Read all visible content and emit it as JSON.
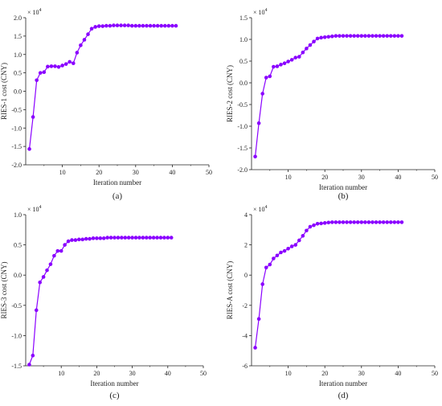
{
  "line_color": "#8a00ff",
  "chart_data": [
    {
      "type": "line",
      "panel_label": "(a)",
      "xlabel": "Iteration number",
      "ylabel": "RIES-1 cost (CNY)",
      "y_exponent": "× 10",
      "y_exponent_power": "4",
      "xlim": [
        0,
        50
      ],
      "ylim": [
        -2.0,
        2.0
      ],
      "xticks": [
        10,
        20,
        30,
        40,
        50
      ],
      "xtick_labels": [
        "10",
        "20",
        "30",
        "40",
        "50"
      ],
      "yticks": [
        -2.0,
        -1.5,
        -1.0,
        -0.5,
        0.0,
        0.5,
        1.0,
        1.5,
        2.0
      ],
      "ytick_labels": [
        "-2.0",
        "-1.5",
        "-1.0",
        "-0.5",
        "0.0",
        "0.5",
        "1.0",
        "1.5",
        "2.0"
      ],
      "grid": false,
      "series": [
        {
          "x": [
            1,
            2,
            3,
            4,
            5,
            6,
            7,
            8,
            9,
            10,
            11,
            12,
            13,
            14,
            15,
            16,
            17,
            18,
            19,
            20,
            21,
            22,
            23,
            24,
            25,
            26,
            27,
            28,
            29,
            30,
            31,
            32,
            33,
            34,
            35,
            36,
            37,
            38,
            39,
            40,
            41
          ],
          "y": [
            -1.57,
            -0.7,
            0.3,
            0.5,
            0.52,
            0.67,
            0.68,
            0.68,
            0.66,
            0.7,
            0.74,
            0.8,
            0.76,
            1.05,
            1.25,
            1.4,
            1.55,
            1.7,
            1.75,
            1.77,
            1.77,
            1.78,
            1.78,
            1.79,
            1.79,
            1.79,
            1.79,
            1.79,
            1.78,
            1.78,
            1.78,
            1.78,
            1.78,
            1.78,
            1.78,
            1.78,
            1.78,
            1.78,
            1.78,
            1.78,
            1.78
          ]
        }
      ]
    },
    {
      "type": "line",
      "panel_label": "(b)",
      "xlabel": "Iteration number",
      "ylabel": "RIES-2 cost (CNY)",
      "y_exponent": "× 10",
      "y_exponent_power": "4",
      "xlim": [
        0,
        50
      ],
      "ylim": [
        -2.0,
        1.5
      ],
      "xticks": [
        10,
        20,
        30,
        40,
        50
      ],
      "xtick_labels": [
        "10",
        "20",
        "30",
        "40",
        "50"
      ],
      "yticks": [
        -2.0,
        -1.5,
        -1.0,
        -0.5,
        0.0,
        0.5,
        1.0,
        1.5
      ],
      "ytick_labels": [
        "-2.0",
        "-1.5",
        "-1.0",
        "-0.5",
        "0.0",
        "0.5",
        "1.0",
        "1.5"
      ],
      "grid": false,
      "series": [
        {
          "x": [
            1,
            2,
            3,
            4,
            5,
            6,
            7,
            8,
            9,
            10,
            11,
            12,
            13,
            14,
            15,
            16,
            17,
            18,
            19,
            20,
            21,
            22,
            23,
            24,
            25,
            26,
            27,
            28,
            29,
            30,
            31,
            32,
            33,
            34,
            35,
            36,
            37,
            38,
            39,
            40,
            41
          ],
          "y": [
            -1.7,
            -0.93,
            -0.25,
            0.12,
            0.15,
            0.37,
            0.38,
            0.42,
            0.45,
            0.49,
            0.53,
            0.58,
            0.6,
            0.7,
            0.79,
            0.87,
            0.95,
            1.02,
            1.04,
            1.05,
            1.06,
            1.07,
            1.08,
            1.08,
            1.08,
            1.08,
            1.08,
            1.08,
            1.08,
            1.08,
            1.08,
            1.08,
            1.08,
            1.08,
            1.08,
            1.08,
            1.08,
            1.08,
            1.08,
            1.08,
            1.08
          ]
        }
      ]
    },
    {
      "type": "line",
      "panel_label": "(c)",
      "xlabel": "Iteration number",
      "ylabel": "RIES-3 cost (CNY)",
      "y_exponent": "× 10",
      "y_exponent_power": "4",
      "xlim": [
        0,
        50
      ],
      "ylim": [
        -1.5,
        1.0
      ],
      "xticks": [
        10,
        20,
        30,
        40,
        50
      ],
      "xtick_labels": [
        "10",
        "20",
        "30",
        "40",
        "50"
      ],
      "yticks": [
        -1.5,
        -1.0,
        -0.5,
        0.0,
        0.5,
        1.0
      ],
      "ytick_labels": [
        "-1.5",
        "-1.0",
        "-0.5",
        "0.0",
        "0.5",
        "1.0"
      ],
      "grid": false,
      "series": [
        {
          "x": [
            1,
            2,
            3,
            4,
            5,
            6,
            7,
            8,
            9,
            10,
            11,
            12,
            13,
            14,
            15,
            16,
            17,
            18,
            19,
            20,
            21,
            22,
            23,
            24,
            25,
            26,
            27,
            28,
            29,
            30,
            31,
            32,
            33,
            34,
            35,
            36,
            37,
            38,
            39,
            40,
            41
          ],
          "y": [
            -1.48,
            -1.33,
            -0.58,
            -0.12,
            -0.03,
            0.08,
            0.18,
            0.32,
            0.4,
            0.4,
            0.5,
            0.56,
            0.58,
            0.58,
            0.59,
            0.59,
            0.6,
            0.6,
            0.61,
            0.61,
            0.61,
            0.61,
            0.62,
            0.62,
            0.62,
            0.62,
            0.62,
            0.62,
            0.62,
            0.62,
            0.62,
            0.62,
            0.62,
            0.62,
            0.62,
            0.62,
            0.62,
            0.62,
            0.62,
            0.62,
            0.62
          ]
        }
      ]
    },
    {
      "type": "line",
      "panel_label": "(d)",
      "xlabel": "Iteration number",
      "ylabel": "RIES-A cost (CNY)",
      "y_exponent": "× 10",
      "y_exponent_power": "4",
      "xlim": [
        0,
        50
      ],
      "ylim": [
        -6,
        4
      ],
      "xticks": [
        10,
        20,
        30,
        40,
        50
      ],
      "xtick_labels": [
        "10",
        "20",
        "30",
        "40",
        "50"
      ],
      "yticks": [
        -6,
        -4,
        -2,
        0,
        2,
        4
      ],
      "ytick_labels": [
        "-6",
        "-4",
        "-2",
        "0",
        "2",
        "4"
      ],
      "grid": false,
      "series": [
        {
          "x": [
            1,
            2,
            3,
            4,
            5,
            6,
            7,
            8,
            9,
            10,
            11,
            12,
            13,
            14,
            15,
            16,
            17,
            18,
            19,
            20,
            21,
            22,
            23,
            24,
            25,
            26,
            27,
            28,
            29,
            30,
            31,
            32,
            33,
            34,
            35,
            36,
            37,
            38,
            39,
            40,
            41
          ],
          "y": [
            -4.8,
            -2.9,
            -0.6,
            0.5,
            0.7,
            1.1,
            1.3,
            1.5,
            1.6,
            1.75,
            1.9,
            2.0,
            2.3,
            2.6,
            2.95,
            3.2,
            3.3,
            3.4,
            3.42,
            3.45,
            3.48,
            3.5,
            3.5,
            3.5,
            3.5,
            3.5,
            3.5,
            3.5,
            3.5,
            3.5,
            3.5,
            3.5,
            3.5,
            3.5,
            3.5,
            3.5,
            3.5,
            3.5,
            3.5,
            3.5,
            3.5
          ]
        }
      ]
    }
  ]
}
